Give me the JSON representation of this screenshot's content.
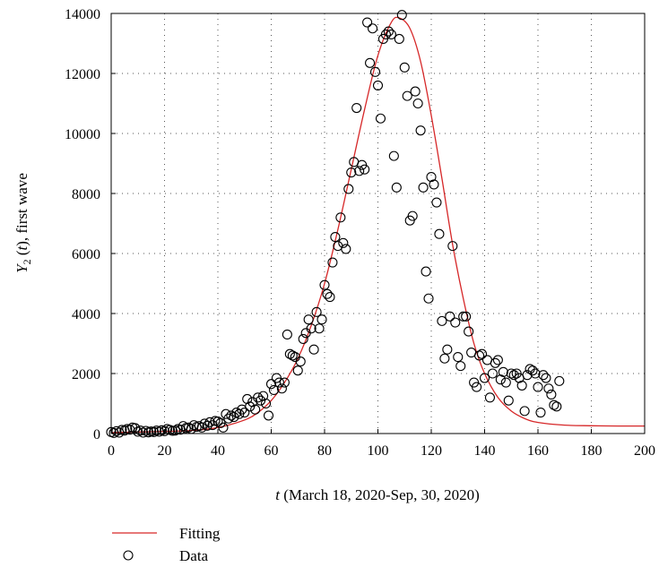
{
  "chart_data": {
    "type": "scatter",
    "xlabel": {
      "var": "t",
      "text": " (March 18, 2020-Sep, 30, 2020)"
    },
    "ylabel": {
      "var": "Y",
      "sub": "2",
      "paren": " (",
      "var2": "t",
      "text": "), first wave"
    },
    "xlim": [
      0,
      200
    ],
    "ylim": [
      0,
      14000
    ],
    "xticks": [
      0,
      20,
      40,
      60,
      80,
      100,
      120,
      140,
      160,
      180,
      200
    ],
    "yticks": [
      0,
      2000,
      4000,
      6000,
      8000,
      10000,
      12000,
      14000
    ],
    "grid": true,
    "legend_position": "below",
    "series": [
      {
        "name": "Fitting",
        "kind": "line",
        "color": "#d62728",
        "x": [
          0,
          10,
          20,
          30,
          40,
          50,
          55,
          60,
          65,
          70,
          75,
          80,
          85,
          90,
          95,
          100,
          105,
          108,
          112,
          116,
          120,
          124,
          128,
          132,
          136,
          140,
          145,
          150,
          155,
          160,
          170,
          180,
          190,
          200
        ],
        "y": [
          30,
          50,
          70,
          100,
          200,
          450,
          700,
          1100,
          1700,
          2500,
          3600,
          5000,
          6800,
          8800,
          10800,
          12600,
          13700,
          13850,
          13500,
          12400,
          10600,
          8500,
          6300,
          4500,
          3000,
          2000,
          1200,
          750,
          500,
          370,
          280,
          260,
          250,
          250
        ]
      },
      {
        "name": "Data",
        "kind": "scatter",
        "color": "#000000",
        "marker": "open-circle",
        "points": [
          [
            0,
            50
          ],
          [
            1,
            20
          ],
          [
            2,
            80
          ],
          [
            3,
            30
          ],
          [
            4,
            120
          ],
          [
            5,
            100
          ],
          [
            6,
            150
          ],
          [
            7,
            130
          ],
          [
            8,
            200
          ],
          [
            9,
            180
          ],
          [
            10,
            60
          ],
          [
            11,
            100
          ],
          [
            12,
            30
          ],
          [
            13,
            90
          ],
          [
            14,
            40
          ],
          [
            15,
            70
          ],
          [
            16,
            50
          ],
          [
            17,
            100
          ],
          [
            18,
            60
          ],
          [
            19,
            110
          ],
          [
            20,
            80
          ],
          [
            21,
            150
          ],
          [
            22,
            120
          ],
          [
            23,
            90
          ],
          [
            24,
            100
          ],
          [
            25,
            150
          ],
          [
            26,
            130
          ],
          [
            27,
            250
          ],
          [
            28,
            180
          ],
          [
            29,
            200
          ],
          [
            30,
            150
          ],
          [
            31,
            280
          ],
          [
            32,
            220
          ],
          [
            33,
            250
          ],
          [
            34,
            200
          ],
          [
            35,
            330
          ],
          [
            36,
            260
          ],
          [
            37,
            380
          ],
          [
            38,
            280
          ],
          [
            39,
            420
          ],
          [
            40,
            400
          ],
          [
            41,
            350
          ],
          [
            42,
            200
          ],
          [
            43,
            650
          ],
          [
            44,
            500
          ],
          [
            45,
            600
          ],
          [
            46,
            550
          ],
          [
            47,
            700
          ],
          [
            48,
            650
          ],
          [
            49,
            800
          ],
          [
            50,
            700
          ],
          [
            51,
            1150
          ],
          [
            52,
            900
          ],
          [
            53,
            1050
          ],
          [
            54,
            800
          ],
          [
            55,
            1200
          ],
          [
            56,
            1100
          ],
          [
            57,
            1250
          ],
          [
            58,
            1000
          ],
          [
            59,
            600
          ],
          [
            60,
            1650
          ],
          [
            61,
            1450
          ],
          [
            62,
            1850
          ],
          [
            63,
            1700
          ],
          [
            64,
            1500
          ],
          [
            65,
            1700
          ],
          [
            66,
            3300
          ],
          [
            67,
            2650
          ],
          [
            68,
            2600
          ],
          [
            69,
            2550
          ],
          [
            70,
            2100
          ],
          [
            71,
            2400
          ],
          [
            72,
            3150
          ],
          [
            73,
            3350
          ],
          [
            74,
            3800
          ],
          [
            75,
            3500
          ],
          [
            76,
            2800
          ],
          [
            77,
            4050
          ],
          [
            78,
            3500
          ],
          [
            79,
            3800
          ],
          [
            80,
            4950
          ],
          [
            81,
            4650
          ],
          [
            82,
            4550
          ],
          [
            83,
            5700
          ],
          [
            84,
            6550
          ],
          [
            85,
            6250
          ],
          [
            86,
            7200
          ],
          [
            87,
            6350
          ],
          [
            88,
            6150
          ],
          [
            89,
            8150
          ],
          [
            90,
            8700
          ],
          [
            91,
            9050
          ],
          [
            92,
            10850
          ],
          [
            93,
            8750
          ],
          [
            94,
            8950
          ],
          [
            95,
            8800
          ],
          [
            96,
            13700
          ],
          [
            97,
            12350
          ],
          [
            98,
            13500
          ],
          [
            99,
            12050
          ],
          [
            100,
            11600
          ],
          [
            101,
            10500
          ],
          [
            102,
            13150
          ],
          [
            103,
            13300
          ],
          [
            104,
            13400
          ],
          [
            105,
            13300
          ],
          [
            106,
            9250
          ],
          [
            107,
            8200
          ],
          [
            108,
            13150
          ],
          [
            109,
            13950
          ],
          [
            110,
            12200
          ],
          [
            111,
            11250
          ],
          [
            112,
            7100
          ],
          [
            113,
            7250
          ],
          [
            114,
            11400
          ],
          [
            115,
            11000
          ],
          [
            116,
            10100
          ],
          [
            117,
            8200
          ],
          [
            118,
            5400
          ],
          [
            119,
            4500
          ],
          [
            120,
            8550
          ],
          [
            121,
            8300
          ],
          [
            122,
            7700
          ],
          [
            123,
            6650
          ],
          [
            124,
            3750
          ],
          [
            125,
            2500
          ],
          [
            126,
            2800
          ],
          [
            127,
            3900
          ],
          [
            128,
            6250
          ],
          [
            129,
            3700
          ],
          [
            130,
            2550
          ],
          [
            131,
            2250
          ],
          [
            132,
            3900
          ],
          [
            133,
            3900
          ],
          [
            134,
            3400
          ],
          [
            135,
            2700
          ],
          [
            136,
            1700
          ],
          [
            137,
            1550
          ],
          [
            138,
            2600
          ],
          [
            139,
            2650
          ],
          [
            140,
            1850
          ],
          [
            141,
            2450
          ],
          [
            142,
            1200
          ],
          [
            143,
            2000
          ],
          [
            144,
            2350
          ],
          [
            145,
            2450
          ],
          [
            146,
            1800
          ],
          [
            147,
            2050
          ],
          [
            148,
            1700
          ],
          [
            149,
            1100
          ],
          [
            150,
            2000
          ],
          [
            151,
            1950
          ],
          [
            152,
            2000
          ],
          [
            153,
            1850
          ],
          [
            154,
            1600
          ],
          [
            155,
            750
          ],
          [
            156,
            1950
          ],
          [
            157,
            2150
          ],
          [
            158,
            2100
          ],
          [
            159,
            2000
          ],
          [
            160,
            1550
          ],
          [
            161,
            700
          ],
          [
            162,
            1950
          ],
          [
            163,
            1850
          ],
          [
            164,
            1500
          ],
          [
            165,
            1300
          ],
          [
            166,
            950
          ],
          [
            167,
            900
          ],
          [
            168,
            1750
          ]
        ]
      }
    ]
  }
}
